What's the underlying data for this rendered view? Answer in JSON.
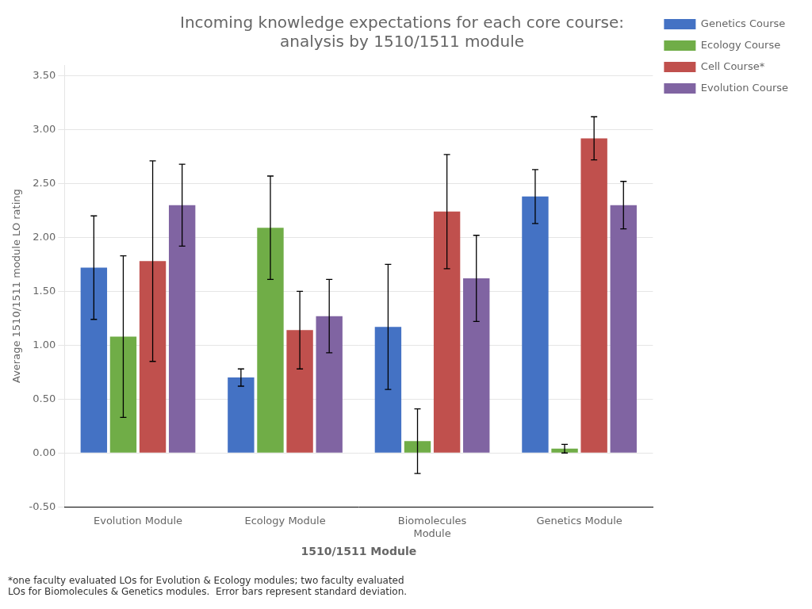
{
  "chart_data": {
    "type": "bar",
    "title": "Incoming knowledge expectations for each core course:\nanalysis by 1510/1511 module",
    "xlabel": "1510/1511 Module",
    "ylabel": "Average 1510/1511 module LO rating",
    "categories": [
      "Evolution Module",
      "Ecology Module",
      "Biomolecules\nModule",
      "Genetics Module"
    ],
    "series": [
      {
        "name": "Genetics Course",
        "color": "#4472C4",
        "values": [
          1.72,
          0.7,
          1.17,
          2.38
        ],
        "errors": [
          0.48,
          0.08,
          0.58,
          0.25
        ]
      },
      {
        "name": "Ecology Course",
        "color": "#70AD47",
        "values": [
          1.08,
          2.09,
          0.11,
          0.04
        ],
        "errors": [
          0.75,
          0.48,
          0.3,
          0.04
        ]
      },
      {
        "name": "Cell Course*",
        "color": "#C0504D",
        "values": [
          1.78,
          1.14,
          2.24,
          2.92
        ],
        "errors": [
          0.93,
          0.36,
          0.53,
          0.2
        ]
      },
      {
        "name": "Evolution Course",
        "color": "#8064A2",
        "values": [
          2.3,
          1.27,
          1.62,
          2.3
        ],
        "errors": [
          0.38,
          0.34,
          0.4,
          0.22
        ]
      }
    ],
    "ylim": [
      -0.5,
      3.6
    ],
    "yticks": [
      {
        "value": -0.5,
        "label": "-0.50"
      },
      {
        "value": 0,
        "label": "0.00"
      },
      {
        "value": 0.5,
        "label": "0.50"
      },
      {
        "value": 1,
        "label": "1.00"
      },
      {
        "value": 1.5,
        "label": "1.50"
      },
      {
        "value": 2,
        "label": "2.00"
      },
      {
        "value": 2.5,
        "label": "2.50"
      },
      {
        "value": 3,
        "label": "3.00"
      },
      {
        "value": 3.5,
        "label": "3.50"
      }
    ],
    "grid": true,
    "legend": "right",
    "footnote": "*one faculty evaluated LOs for Evolution & Ecology modules; two faculty evaluated\nLOs for Biomolecules & Genetics modules.  Error bars represent standard deviation."
  }
}
